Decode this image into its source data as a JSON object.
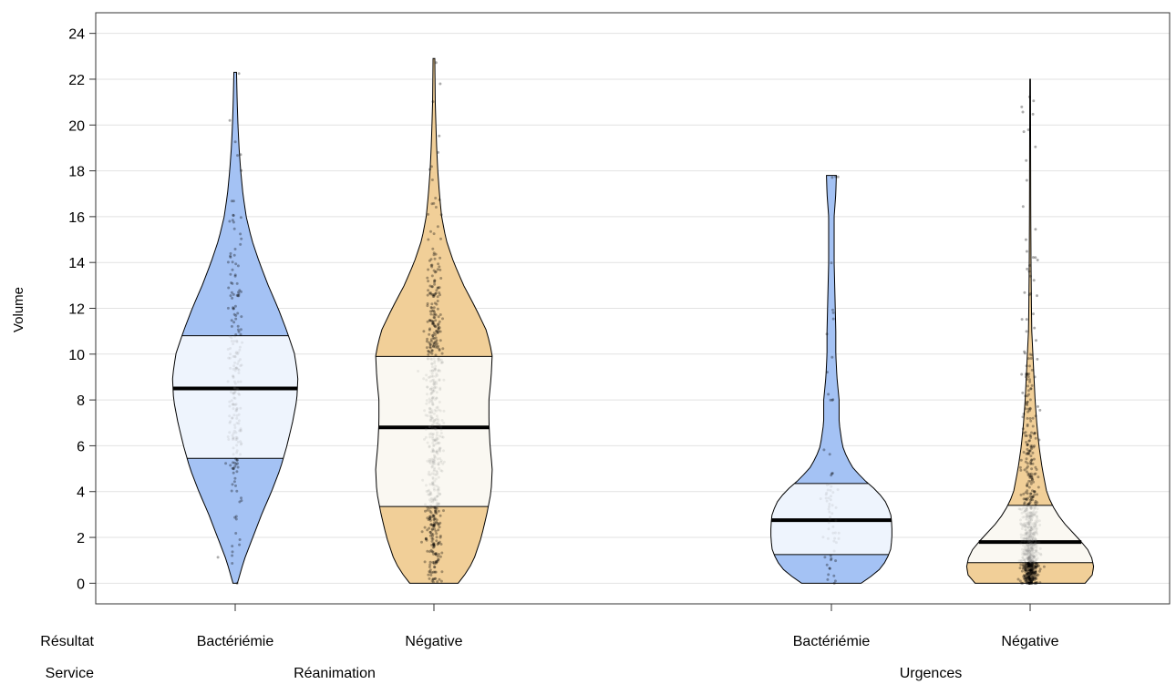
{
  "chart_data": {
    "type": "violin",
    "ylabel": "Volume",
    "ylim": [
      -0.9,
      24.9
    ],
    "yticks": [
      0,
      2,
      4,
      6,
      8,
      10,
      12,
      14,
      16,
      18,
      20,
      22,
      24
    ],
    "grid": true,
    "row_labels": {
      "result": "Résultat",
      "service": "Service"
    },
    "groups": [
      {
        "label": "Réanimation",
        "categories": [
          {
            "label": "Bactériémie",
            "color": "#a4c2f4",
            "iqr_color": "#eef4fd",
            "median": 8.5,
            "q1": 5.45,
            "q3": 10.8,
            "min": 0.0,
            "max": 22.3,
            "n_points": 220,
            "profile": [
              [
                0,
                0.02
              ],
              [
                1,
                0.08
              ],
              [
                2,
                0.16
              ],
              [
                3,
                0.24
              ],
              [
                4,
                0.33
              ],
              [
                5,
                0.41
              ],
              [
                6,
                0.47
              ],
              [
                7,
                0.52
              ],
              [
                8,
                0.56
              ],
              [
                9,
                0.57
              ],
              [
                10,
                0.54
              ],
              [
                11,
                0.47
              ],
              [
                12,
                0.39
              ],
              [
                13,
                0.3
              ],
              [
                14,
                0.22
              ],
              [
                15,
                0.15
              ],
              [
                16,
                0.1
              ],
              [
                17,
                0.07
              ],
              [
                18,
                0.05
              ],
              [
                19,
                0.035
              ],
              [
                20,
                0.025
              ],
              [
                21,
                0.018
              ],
              [
                22.3,
                0.012
              ]
            ]
          },
          {
            "label": "Négative",
            "color": "#f1cf98",
            "iqr_color": "#faf8f2",
            "median": 6.8,
            "q1": 3.35,
            "q3": 9.9,
            "min": 0.0,
            "max": 22.9,
            "n_points": 600,
            "profile": [
              [
                0,
                0.22
              ],
              [
                0.5,
                0.3
              ],
              [
                1,
                0.36
              ],
              [
                2,
                0.43
              ],
              [
                3,
                0.48
              ],
              [
                4,
                0.52
              ],
              [
                5,
                0.53
              ],
              [
                6,
                0.51
              ],
              [
                7,
                0.5
              ],
              [
                8,
                0.5
              ],
              [
                9,
                0.52
              ],
              [
                10,
                0.53
              ],
              [
                11,
                0.48
              ],
              [
                12,
                0.38
              ],
              [
                13,
                0.27
              ],
              [
                14,
                0.18
              ],
              [
                15,
                0.11
              ],
              [
                16,
                0.07
              ],
              [
                17,
                0.05
              ],
              [
                18,
                0.035
              ],
              [
                19,
                0.025
              ],
              [
                20,
                0.018
              ],
              [
                21,
                0.012
              ],
              [
                22.9,
                0.008
              ]
            ]
          }
        ]
      },
      {
        "label": "Urgences",
        "categories": [
          {
            "label": "Bactériémie",
            "color": "#a4c2f4",
            "iqr_color": "#eef4fd",
            "median": 2.75,
            "q1": 1.25,
            "q3": 4.35,
            "min": 0.0,
            "max": 17.8,
            "n_points": 70,
            "profile": [
              [
                0,
                0.27
              ],
              [
                0.5,
                0.42
              ],
              [
                1,
                0.5
              ],
              [
                1.5,
                0.54
              ],
              [
                2,
                0.55
              ],
              [
                2.5,
                0.55
              ],
              [
                3,
                0.54
              ],
              [
                3.5,
                0.5
              ],
              [
                4,
                0.42
              ],
              [
                4.5,
                0.3
              ],
              [
                5,
                0.2
              ],
              [
                5.5,
                0.14
              ],
              [
                6,
                0.1
              ],
              [
                7,
                0.07
              ],
              [
                8,
                0.07
              ],
              [
                9,
                0.05
              ],
              [
                10,
                0.04
              ],
              [
                11,
                0.04
              ],
              [
                12,
                0.035
              ],
              [
                13,
                0.03
              ],
              [
                14,
                0.025
              ],
              [
                15,
                0.025
              ],
              [
                16,
                0.025
              ],
              [
                17,
                0.04
              ],
              [
                17.8,
                0.045
              ]
            ]
          },
          {
            "label": "Négative",
            "color": "#f1cf98",
            "iqr_color": "#faf8f2",
            "median": 1.8,
            "q1": 0.9,
            "q3": 3.4,
            "min": 0.0,
            "max": 22.0,
            "n_points": 800,
            "profile": [
              [
                0,
                0.5
              ],
              [
                0.3,
                0.56
              ],
              [
                0.6,
                0.58
              ],
              [
                1,
                0.57
              ],
              [
                1.5,
                0.52
              ],
              [
                2,
                0.43
              ],
              [
                2.5,
                0.33
              ],
              [
                3,
                0.25
              ],
              [
                3.5,
                0.19
              ],
              [
                4,
                0.15
              ],
              [
                5,
                0.11
              ],
              [
                6,
                0.08
              ],
              [
                7,
                0.06
              ],
              [
                8,
                0.045
              ],
              [
                9,
                0.035
              ],
              [
                10,
                0.025
              ],
              [
                11,
                0.015
              ],
              [
                12,
                0.012
              ],
              [
                14,
                0.008
              ],
              [
                16,
                0.006
              ],
              [
                18,
                0.005
              ],
              [
                20,
                0.004
              ],
              [
                22,
                0.003
              ]
            ]
          }
        ]
      }
    ]
  }
}
